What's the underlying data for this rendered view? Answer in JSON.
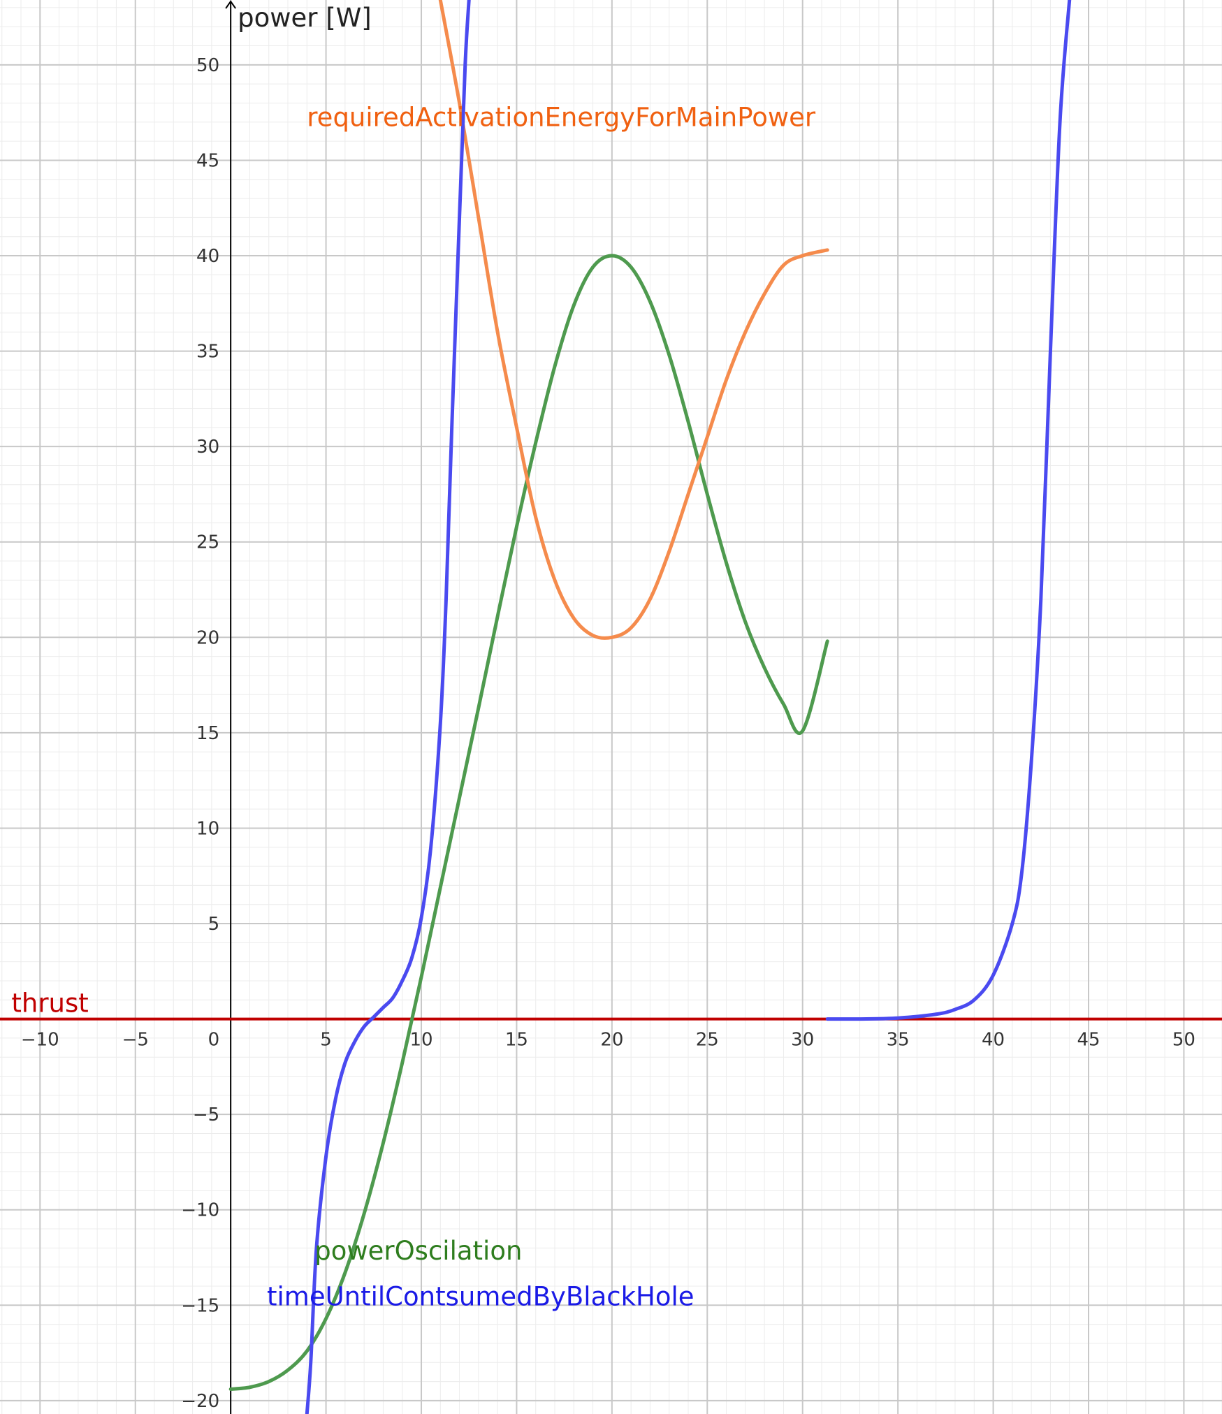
{
  "chart_data": {
    "type": "line",
    "title": "",
    "xlabel": "",
    "ylabel": "power [W]",
    "xlim": [
      -12.1,
      52.0
    ],
    "ylim": [
      -20.7,
      53.4
    ],
    "grid": true,
    "x_ticks": [
      "−10",
      "−5",
      "0",
      "5",
      "10",
      "15",
      "20",
      "25",
      "30",
      "35",
      "40",
      "45",
      "50"
    ],
    "x_tick_values": [
      -10,
      -5,
      0,
      5,
      10,
      15,
      20,
      25,
      30,
      35,
      40,
      45,
      50
    ],
    "y_ticks": [
      "−20",
      "−15",
      "−10",
      "−5",
      "5",
      "10",
      "15",
      "20",
      "25",
      "30",
      "35",
      "40",
      "45",
      "50"
    ],
    "y_tick_values": [
      -20,
      -15,
      -10,
      -5,
      5,
      10,
      15,
      20,
      25,
      30,
      35,
      40,
      45,
      50
    ],
    "colors": {
      "thrust": "#c00000",
      "powerOscilation": "#4e9a4e",
      "requiredActivationEnergyForMainPower": "#f58b4c",
      "timeUntilContsumedByBlackHole": "#4a4af0",
      "powerOscilation_label": "#2e7d1e",
      "requiredActivationEnergyForMainPower_label": "#f06010",
      "timeUntilContsumedByBlackHole_label": "#1a1ae6"
    },
    "series": [
      {
        "name": "thrust",
        "x": [
          -12.1,
          52.0
        ],
        "y": [
          0,
          0
        ]
      },
      {
        "name": "powerOscilation",
        "x": [
          0,
          1,
          2,
          3,
          4,
          5,
          6,
          7,
          8,
          9,
          10,
          11,
          12,
          13,
          14,
          15,
          16,
          17,
          18,
          19,
          20,
          21,
          22,
          23,
          24,
          25,
          26,
          27,
          28,
          29,
          30,
          31.3
        ],
        "y": [
          -19.4,
          -19.3,
          -19.0,
          -18.4,
          -17.4,
          -15.7,
          -13.3,
          -10.2,
          -6.5,
          -2.3,
          2.2,
          6.9,
          11.6,
          16.3,
          21.1,
          25.8,
          30.2,
          34.2,
          37.4,
          39.4,
          40.0,
          39.4,
          37.6,
          34.8,
          31.3,
          27.5,
          23.9,
          20.8,
          18.4,
          16.5,
          15.1,
          19.8
        ]
      },
      {
        "name": "requiredActivationEnergyForMainPower",
        "x": [
          11,
          12,
          13,
          14,
          15,
          16,
          17,
          18,
          19,
          20,
          21,
          22,
          23,
          24,
          25,
          26,
          27,
          28,
          29,
          30,
          31.3
        ],
        "y": [
          53.4,
          48.0,
          42.0,
          36.0,
          31.0,
          26.3,
          23.0,
          21.0,
          20.1,
          20.0,
          20.5,
          22.0,
          24.5,
          27.5,
          30.5,
          33.5,
          36.0,
          38.0,
          39.5,
          40.0,
          40.3
        ]
      },
      {
        "name": "timeUntilContsumedByBlackHole",
        "x": [
          4.0,
          4.2,
          4.5,
          5.0,
          5.5,
          6.0,
          6.5,
          7.0,
          7.5,
          8.0,
          8.5,
          9.0,
          9.5,
          10.0,
          10.5,
          11.0,
          11.3,
          11.6,
          12.0,
          12.3,
          12.5
        ],
        "y": [
          -20.7,
          -18.0,
          -12.0,
          -7.2,
          -4.2,
          -2.3,
          -1.2,
          -0.4,
          0.1,
          0.6,
          1.1,
          2.0,
          3.2,
          5.3,
          9.0,
          15.5,
          22.0,
          31.0,
          42.0,
          50.0,
          53.4
        ]
      },
      {
        "name": "timeUntilContsumedByBlackHole",
        "x": [
          31.3,
          33,
          35,
          37,
          38,
          39,
          40,
          41,
          41.5,
          42,
          42.5,
          43.0,
          43.5,
          44.0
        ],
        "y": [
          0.0,
          0.0,
          0.05,
          0.25,
          0.5,
          1.0,
          2.3,
          5.0,
          7.7,
          13.5,
          22.0,
          35.0,
          47.0,
          53.4
        ]
      }
    ],
    "labels": {
      "thrust": "thrust",
      "powerOscilation": "powerOscilation",
      "requiredActivationEnergyForMainPower": "requiredActivationEnergyForMainPower",
      "timeUntilContsumedByBlackHole": "timeUntilContsumedByBlackHole"
    }
  }
}
